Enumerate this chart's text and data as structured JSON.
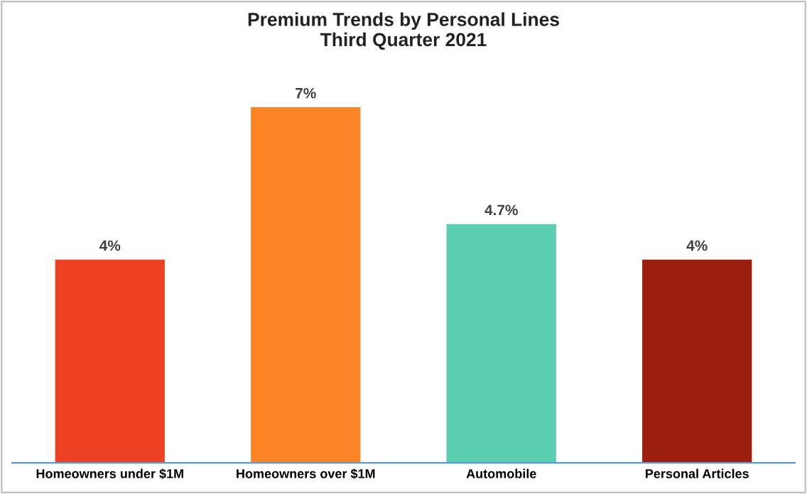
{
  "chart_data": {
    "type": "bar",
    "title": "Premium Trends by Personal Lines\nThird Quarter 2021",
    "categories": [
      "Homeowners under $1M",
      "Homeowners over $1M",
      "Automobile",
      "Personal Articles"
    ],
    "values": [
      4,
      7,
      4.7,
      4
    ],
    "colors": [
      "#ee4023",
      "#fd8424",
      "#5ccfb0",
      "#9c1e0c"
    ],
    "value_labels": [
      "4%",
      "7%",
      "4.7%",
      "4%"
    ],
    "grid": false,
    "legend": false
  }
}
